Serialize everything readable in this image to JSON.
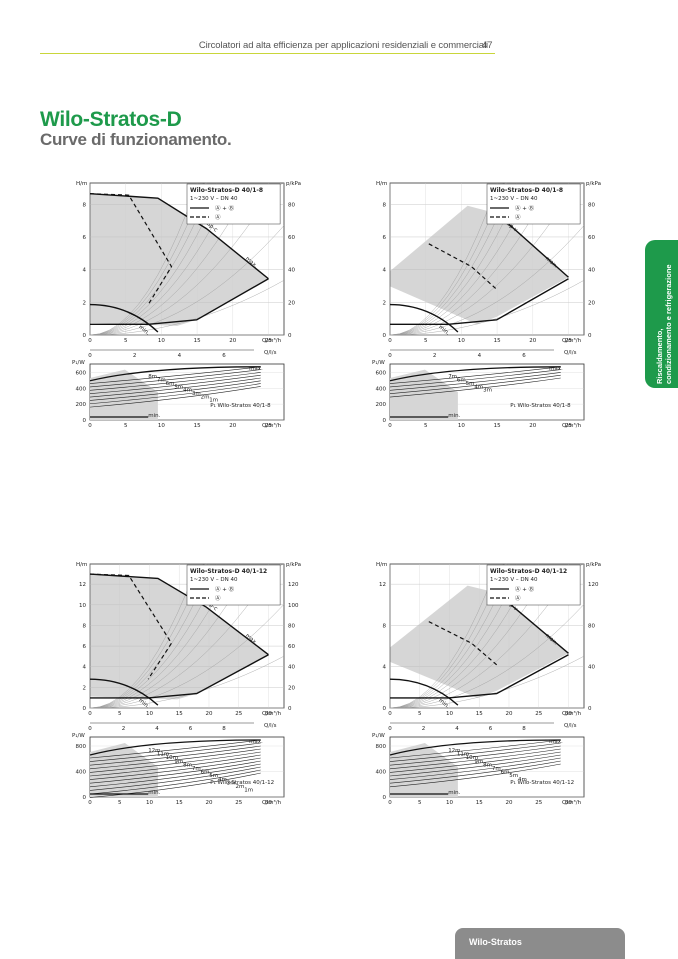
{
  "header": {
    "text": "Circolatori ad alta efficienza per applicazioni residenziali e commerciali",
    "page": "47"
  },
  "title": "Wilo-Stratos-D",
  "subtitle": "Curve di funzionamento.",
  "side_tab": {
    "line1": "Riscaldamento,",
    "line2": "condizionamento e refrigerazione"
  },
  "footer": {
    "label": "Wilo-Stratos"
  },
  "colors": {
    "accent": "#1e9a4b",
    "header_rule": "#c9d63a",
    "footer": "#8c8c8c",
    "curve_fill": "#d6d6d6"
  },
  "panels": [
    {
      "legend_title": "Wilo-Stratos-D 40/1-8",
      "legend_sub": "1~230 V – DN 40",
      "legend_l1": "Ⓐ + Ⓑ",
      "legend_l2": "Ⓐ",
      "h_axis": "H/m",
      "p_axis": "p/kPa",
      "q_axis": "Q/m³/h",
      "ql_axis": "Q/l/s",
      "pw_axis": "P₁/W",
      "h_ticks": [
        "0",
        "2",
        "4",
        "6",
        "8"
      ],
      "p_ticks": [
        "0",
        "20",
        "40",
        "60",
        "80"
      ],
      "q_ticks": [
        "0",
        "5",
        "10",
        "15",
        "20",
        "25"
      ],
      "ql_ticks": [
        "0",
        "2",
        "4",
        "6"
      ],
      "pw_ticks": [
        "0",
        "200",
        "400",
        "600"
      ],
      "curve_labels": [
        "Δp-c",
        "max.",
        "min."
      ],
      "power_labels": [
        "8m",
        "7m",
        "6m",
        "5m",
        "4m",
        "3m",
        "2m",
        "1m",
        "max.",
        "min."
      ],
      "power_legend": "P₁ Wilo-Stratos 40/1-8",
      "mode": "dpc"
    },
    {
      "legend_title": "Wilo-Stratos-D 40/1-8",
      "legend_sub": "1~230 V – DN 40",
      "legend_l1": "Ⓐ + Ⓑ",
      "legend_l2": "Ⓐ",
      "h_axis": "H/m",
      "p_axis": "p/kPa",
      "q_axis": "Q/m³/h",
      "ql_axis": "Q/l/s",
      "pw_axis": "P₁/W",
      "h_ticks": [
        "0",
        "2",
        "4",
        "6",
        "8"
      ],
      "p_ticks": [
        "0",
        "20",
        "40",
        "60",
        "80"
      ],
      "q_ticks": [
        "0",
        "5",
        "10",
        "15",
        "20",
        "25"
      ],
      "ql_ticks": [
        "0",
        "2",
        "4",
        "6"
      ],
      "pw_ticks": [
        "0",
        "200",
        "400",
        "600"
      ],
      "curve_labels": [
        "Δp-v",
        "max.",
        "min."
      ],
      "power_labels": [
        "7m",
        "6m",
        "5m",
        "4m",
        "3m",
        "max.",
        "min."
      ],
      "power_legend": "P₁ Wilo-Stratos 40/1-8",
      "mode": "dpv"
    },
    {
      "legend_title": "Wilo-Stratos-D 40/1-12",
      "legend_sub": "1~230 V – DN 40",
      "legend_l1": "Ⓐ + Ⓑ",
      "legend_l2": "Ⓐ",
      "h_axis": "H/m",
      "p_axis": "p/kPa",
      "q_axis": "Q/m³/h",
      "ql_axis": "Q/l/s",
      "pw_axis": "P₁/W",
      "h_ticks": [
        "0",
        "2",
        "4",
        "6",
        "8",
        "10",
        "12"
      ],
      "p_ticks": [
        "0",
        "20",
        "40",
        "60",
        "80",
        "100",
        "120"
      ],
      "q_ticks": [
        "0",
        "5",
        "10",
        "15",
        "20",
        "25",
        "30"
      ],
      "ql_ticks": [
        "0",
        "2",
        "4",
        "6",
        "8"
      ],
      "pw_ticks": [
        "0",
        "400",
        "800"
      ],
      "curve_labels": [
        "Δp-c",
        "max.",
        "min."
      ],
      "power_labels": [
        "12m",
        "11m",
        "10m",
        "9m",
        "8m",
        "7m",
        "6m",
        "5m",
        "4m",
        "3m",
        "2m",
        "1m",
        "max.",
        "min."
      ],
      "power_legend": "P₁ Wilo-Stratos 40/1-12",
      "mode": "dpc"
    },
    {
      "legend_title": "Wilo-Stratos-D 40/1-12",
      "legend_sub": "1~230 V – DN 40",
      "legend_l1": "Ⓐ + Ⓑ",
      "legend_l2": "Ⓐ",
      "h_axis": "H/m",
      "p_axis": "p/kPa",
      "q_axis": "Q/m³/h",
      "ql_axis": "Q/l/s",
      "pw_axis": "P₁/W",
      "h_ticks": [
        "0",
        "4",
        "8",
        "12"
      ],
      "p_ticks": [
        "0",
        "40",
        "80",
        "120"
      ],
      "q_ticks": [
        "0",
        "5",
        "10",
        "15",
        "20",
        "25",
        "30"
      ],
      "ql_ticks": [
        "0",
        "2",
        "4",
        "6",
        "8"
      ],
      "pw_ticks": [
        "0",
        "400",
        "800"
      ],
      "curve_labels": [
        "Δp-v",
        "max.",
        "min."
      ],
      "power_labels": [
        "12m",
        "11m",
        "10m",
        "9m",
        "8m",
        "7m",
        "6m",
        "5m",
        "4m",
        "max.",
        "min."
      ],
      "power_legend": "P₁ Wilo-Stratos 40/1-12",
      "mode": "dpv"
    }
  ]
}
